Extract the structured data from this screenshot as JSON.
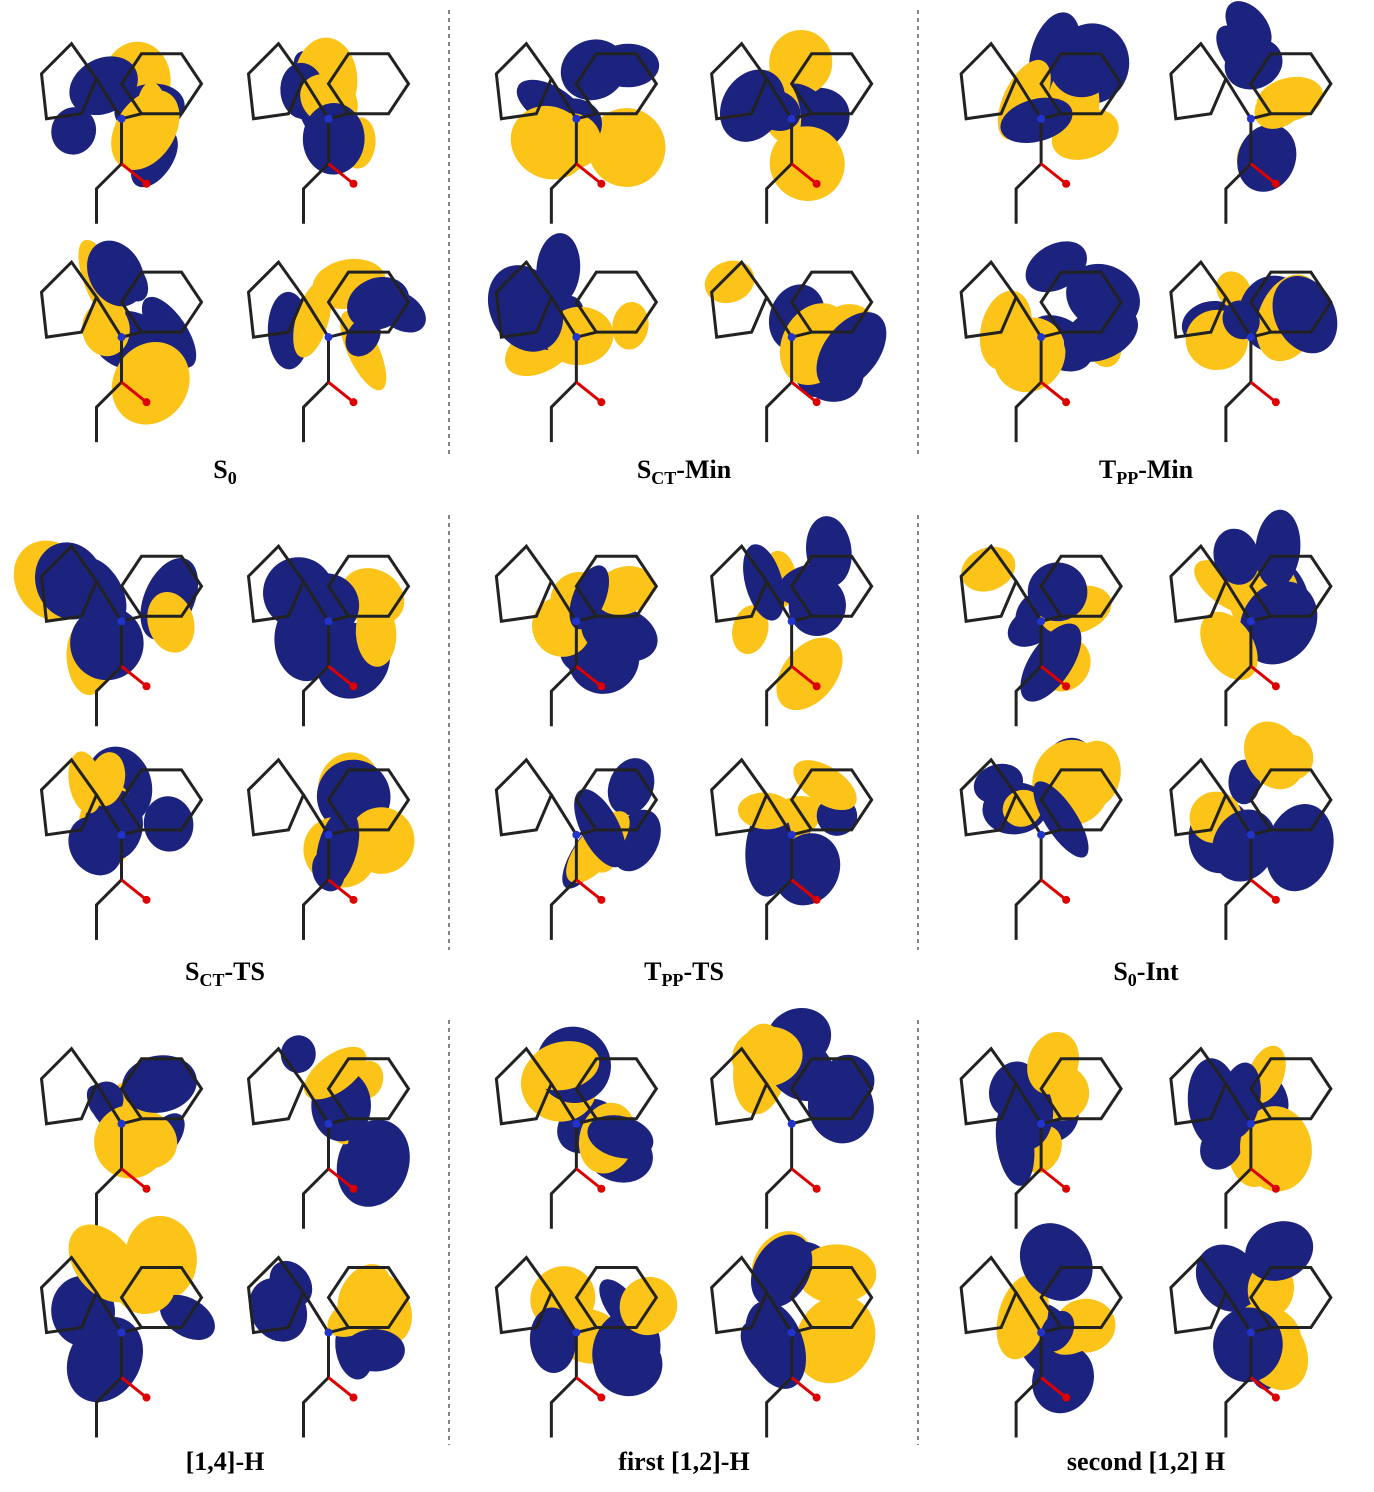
{
  "panels": [
    {
      "label": {
        "base": "S",
        "sub": "0"
      }
    },
    {
      "label": {
        "base": "S",
        "sub": "CT",
        "suffix": "-Min"
      }
    },
    {
      "label": {
        "base": "T",
        "sub": "PP",
        "suffix": "-Min"
      }
    },
    {
      "label": {
        "base": "S",
        "sub": "CT",
        "suffix": "-TS"
      }
    },
    {
      "label": {
        "base": "T",
        "sub": "PP",
        "suffix": "-TS"
      }
    },
    {
      "label": {
        "base": "S",
        "sub": "0",
        "suffix": "-Int"
      }
    },
    {
      "label": {
        "base": "[1,4]-H"
      }
    },
    {
      "label": {
        "base": "first [1,2]-H"
      }
    },
    {
      "label": {
        "base": "second [1,2] H"
      }
    }
  ]
}
